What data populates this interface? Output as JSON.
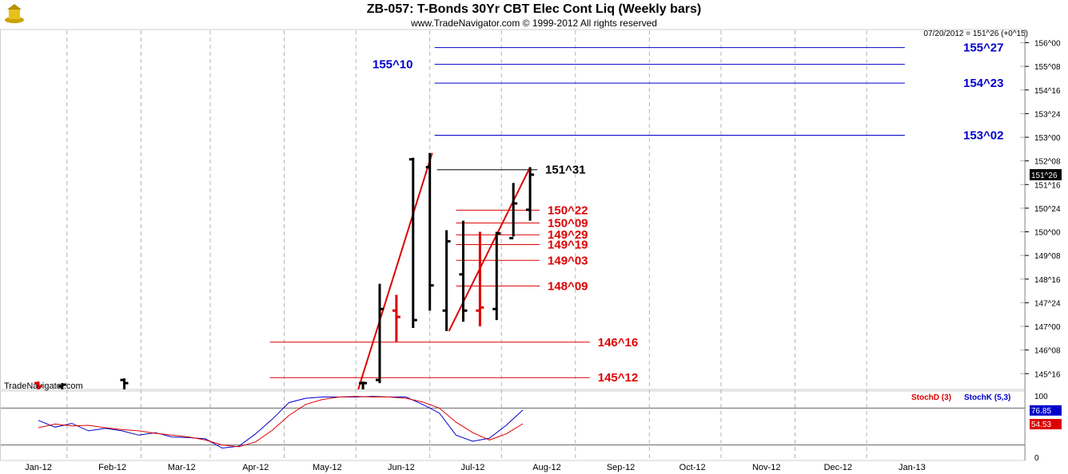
{
  "header": {
    "title": "ZB-057:  T-Bonds 30Yr CBT Elec Cont Liq  (Weekly bars)",
    "copyright": "www.TradeNavigator.com © 1999-2012 All rights reserved",
    "readout": "07/20/2012 = 151^26 (+0^15)",
    "watermark": "TradeNavigator.com"
  },
  "colors": {
    "bar": "#000000",
    "red": "#dd0000",
    "blue": "#0000cc",
    "grid": "#b4b4b4"
  },
  "chart_data": [
    {
      "type": "bar",
      "subtype": "ohlc",
      "title": "ZB-057:  T-Bonds 30Yr CBT Elec Cont Liq  (Weekly bars)",
      "x_tick_labels": [
        "Jan-12",
        "Feb-12",
        "Mar-12",
        "Apr-12",
        "May-12",
        "Jun-12",
        "Jul-12",
        "Aug-12",
        "Sep-12",
        "Oct-12",
        "Nov-12",
        "Dec-12",
        "Jan-13"
      ],
      "y_tick_labels": [
        "156^00",
        "155^08",
        "154^16",
        "153^24",
        "153^00",
        "152^08",
        "151^16",
        "150^24",
        "150^00",
        "149^08",
        "148^16",
        "147^24",
        "147^00",
        "146^08",
        "145^16"
      ],
      "ylim": [
        145.0,
        156.19
      ],
      "last_price_label": "151^26",
      "bars": [
        {
          "date": "2012-01-03",
          "high": 145.25,
          "low": 145.0,
          "open": 145.2,
          "close": 145.1,
          "color": "red"
        },
        {
          "date": "2012-01-13",
          "high": 145.2,
          "low": 145.0,
          "open": 145.1,
          "close": 145.15,
          "color": "black"
        },
        {
          "date": "2012-02-08",
          "high": 145.35,
          "low": 145.0,
          "open": 145.3,
          "close": 145.2,
          "color": "black"
        },
        {
          "date": "2012-05-18",
          "high": 145.25,
          "low": 145.0,
          "open": 145.2,
          "close": 145.2,
          "color": "black"
        },
        {
          "date": "2012-05-25",
          "high": 148.35,
          "low": 145.2,
          "open": 145.3,
          "close": 147.55,
          "color": "black"
        },
        {
          "date": "2012-06-01",
          "high": 148.0,
          "low": 146.5,
          "open": 147.5,
          "close": 147.3,
          "color": "red"
        },
        {
          "date": "2012-06-08",
          "high": 152.35,
          "low": 146.95,
          "open": 152.3,
          "close": 147.2,
          "color": "black"
        },
        {
          "date": "2012-06-15",
          "high": 152.5,
          "low": 147.5,
          "open": 152.05,
          "close": 148.3,
          "color": "black"
        },
        {
          "date": "2012-06-22",
          "high": 150.05,
          "low": 146.85,
          "open": 147.5,
          "close": 149.7,
          "color": "black"
        },
        {
          "date": "2012-06-29",
          "high": 150.35,
          "low": 147.15,
          "open": 148.65,
          "close": 147.5,
          "color": "black"
        },
        {
          "date": "2012-07-06",
          "high": 150.0,
          "low": 147.0,
          "open": 147.5,
          "close": 147.6,
          "color": "red"
        },
        {
          "date": "2012-07-13",
          "high": 150.0,
          "low": 147.2,
          "open": 147.55,
          "close": 149.95,
          "color": "black"
        },
        {
          "date": "2012-07-20",
          "high": 151.55,
          "low": 149.85,
          "open": 149.8,
          "close": 150.9,
          "color": "black"
        },
        {
          "date": "2012-07-27",
          "high": 152.05,
          "low": 150.35,
          "open": 150.7,
          "close": 151.8125,
          "color": "black"
        }
      ],
      "levels": [
        {
          "label": "155^27",
          "value": 155.84375,
          "color": "blue"
        },
        {
          "label": "155^10",
          "value": 155.3125,
          "color": "blue"
        },
        {
          "label": "154^23",
          "value": 154.71875,
          "color": "blue"
        },
        {
          "label": "153^02",
          "value": 153.0625,
          "color": "blue"
        },
        {
          "label": "151^31",
          "value": 151.96875,
          "color": "black"
        },
        {
          "label": "150^22",
          "value": 150.6875,
          "color": "red"
        },
        {
          "label": "150^09",
          "value": 150.28125,
          "color": "red"
        },
        {
          "label": "149^29",
          "value": 149.90625,
          "color": "red"
        },
        {
          "label": "149^19",
          "value": 149.59375,
          "color": "red"
        },
        {
          "label": "149^03",
          "value": 149.09375,
          "color": "red"
        },
        {
          "label": "148^09",
          "value": 148.28125,
          "color": "red"
        },
        {
          "label": "146^16",
          "value": 146.5,
          "color": "red"
        },
        {
          "label": "145^12",
          "value": 145.375,
          "color": "red"
        }
      ],
      "trendlines": [
        {
          "from": {
            "date": "2012-05-16",
            "price": 145.0
          },
          "to": {
            "date": "2012-06-16",
            "price": 152.5
          },
          "color": "red"
        },
        {
          "from": {
            "date": "2012-06-23",
            "price": 146.85
          },
          "to": {
            "date": "2012-07-27",
            "price": 152.05
          },
          "color": "red"
        }
      ]
    },
    {
      "type": "line",
      "title": "",
      "legend": [
        "StochD (3)",
        "StochK (5,3)"
      ],
      "ylim": [
        0,
        100
      ],
      "y_tick_labels": [
        "100",
        "0"
      ],
      "reference_lines": [
        80,
        20
      ],
      "last_values": {
        "stoch_d": "54.53",
        "stoch_k": "76.85"
      },
      "series": [
        {
          "name": "StochK (5,3)",
          "color": "blue",
          "points": [
            [
              "2012-01-03",
              60
            ],
            [
              "2012-01-10",
              49
            ],
            [
              "2012-01-17",
              55
            ],
            [
              "2012-01-24",
              43
            ],
            [
              "2012-01-31",
              47
            ],
            [
              "2012-02-07",
              43
            ],
            [
              "2012-02-14",
              36
            ],
            [
              "2012-02-21",
              40
            ],
            [
              "2012-02-28",
              33
            ],
            [
              "2012-03-06",
              32
            ],
            [
              "2012-03-13",
              30
            ],
            [
              "2012-03-20",
              15
            ],
            [
              "2012-03-27",
              18
            ],
            [
              "2012-04-03",
              38
            ],
            [
              "2012-04-10",
              62
            ],
            [
              "2012-04-17",
              89
            ],
            [
              "2012-04-24",
              96
            ],
            [
              "2012-05-01",
              98
            ],
            [
              "2012-05-08",
              98
            ],
            [
              "2012-05-15",
              98
            ],
            [
              "2012-05-22",
              99
            ],
            [
              "2012-05-29",
              98
            ],
            [
              "2012-06-05",
              98
            ],
            [
              "2012-06-12",
              86
            ],
            [
              "2012-06-19",
              72
            ],
            [
              "2012-06-26",
              36
            ],
            [
              "2012-07-03",
              26
            ],
            [
              "2012-07-10",
              31
            ],
            [
              "2012-07-17",
              52
            ],
            [
              "2012-07-24",
              76.85
            ]
          ]
        },
        {
          "name": "StochD (3)",
          "color": "red",
          "points": [
            [
              "2012-01-03",
              48
            ],
            [
              "2012-01-10",
              54
            ],
            [
              "2012-01-17",
              51
            ],
            [
              "2012-01-24",
              52
            ],
            [
              "2012-01-31",
              48
            ],
            [
              "2012-02-07",
              45
            ],
            [
              "2012-02-14",
              43
            ],
            [
              "2012-02-21",
              39
            ],
            [
              "2012-02-28",
              36
            ],
            [
              "2012-03-06",
              33
            ],
            [
              "2012-03-13",
              28
            ],
            [
              "2012-03-20",
              20
            ],
            [
              "2012-03-27",
              17
            ],
            [
              "2012-04-03",
              25
            ],
            [
              "2012-04-10",
              44
            ],
            [
              "2012-04-17",
              68
            ],
            [
              "2012-04-24",
              86
            ],
            [
              "2012-05-01",
              94
            ],
            [
              "2012-05-08",
              98
            ],
            [
              "2012-05-15",
              99
            ],
            [
              "2012-05-22",
              98
            ],
            [
              "2012-05-29",
              98
            ],
            [
              "2012-06-05",
              96
            ],
            [
              "2012-06-12",
              90
            ],
            [
              "2012-06-19",
              80
            ],
            [
              "2012-06-26",
              57
            ],
            [
              "2012-07-03",
              40
            ],
            [
              "2012-07-10",
              28
            ],
            [
              "2012-07-17",
              38
            ],
            [
              "2012-07-24",
              54.53
            ]
          ]
        }
      ]
    }
  ]
}
